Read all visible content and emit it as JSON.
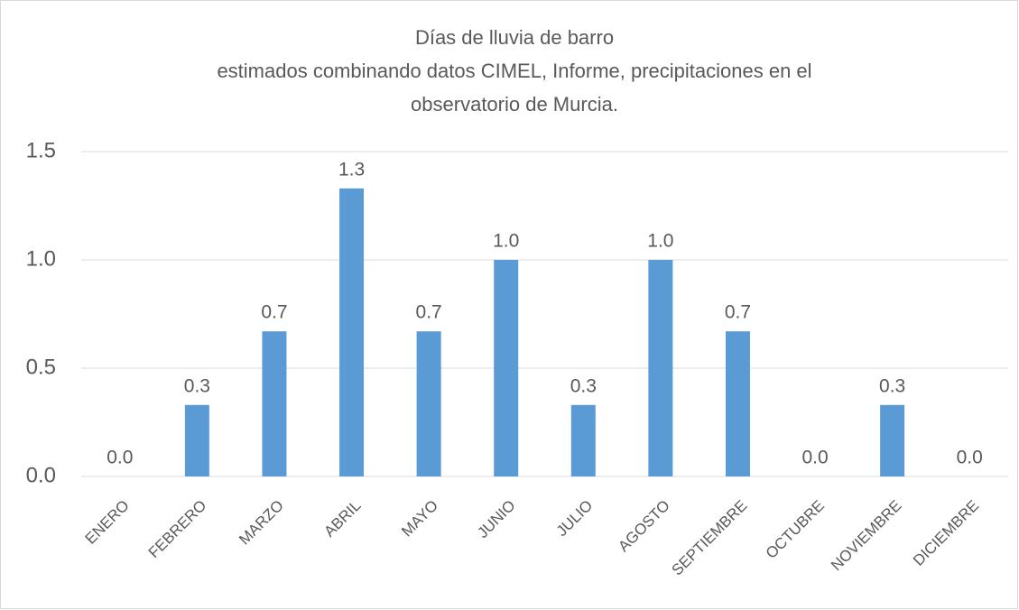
{
  "chart_data": {
    "type": "bar",
    "title": [
      "Días de lluvia de barro",
      "estimados combinando datos CIMEL, Informe, precipitaciones en el",
      "observatorio de Murcia."
    ],
    "categories": [
      "ENERO",
      "FEBRERO",
      "MARZO",
      "ABRIL",
      "MAYO",
      "JUNIO",
      "JULIO",
      "AGOSTO",
      "SEPTIEMBRE",
      "OCTUBRE",
      "NOVIEMBRE",
      "DICIEMBRE"
    ],
    "values": [
      0,
      0.33,
      0.67,
      1.33,
      0.67,
      1,
      0.33,
      1,
      0.67,
      0,
      0.33,
      0
    ],
    "value_labels": [
      "0.0",
      "0.3",
      "0.7",
      "1.3",
      "0.7",
      "1.0",
      "0.3",
      "1.0",
      "0.7",
      "0.0",
      "0.3",
      "0.0"
    ],
    "color": "#5b9bd5",
    "ylim": [
      0,
      1.5
    ],
    "yticks": [
      {
        "value": 0,
        "label": "0.0"
      },
      {
        "value": 0.5,
        "label": "0.5"
      },
      {
        "value": 1,
        "label": "1.0"
      },
      {
        "value": 1.5,
        "label": "1.5"
      }
    ],
    "grid": true
  }
}
